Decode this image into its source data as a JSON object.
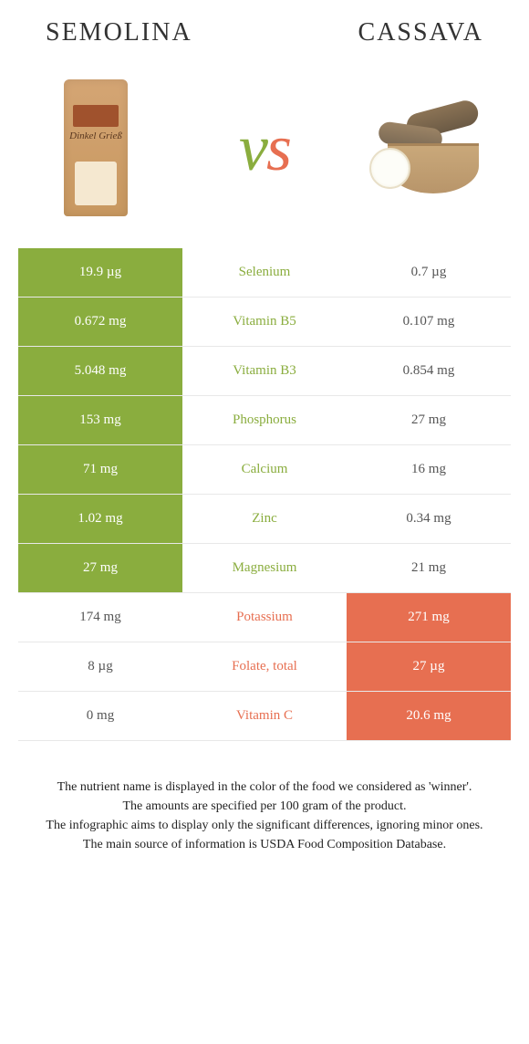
{
  "header": {
    "left_title": "semolina",
    "right_title": "cassava",
    "vs_v": "v",
    "vs_s": "s"
  },
  "colors": {
    "left_accent": "#8aad3e",
    "right_accent": "#e76f51",
    "row_border": "#e8e8e8",
    "background": "#ffffff"
  },
  "table": {
    "type": "comparison-table",
    "rows": [
      {
        "left": "19.9 µg",
        "label": "Selenium",
        "right": "0.7 µg",
        "winner": "left"
      },
      {
        "left": "0.672 mg",
        "label": "Vitamin B5",
        "right": "0.107 mg",
        "winner": "left"
      },
      {
        "left": "5.048 mg",
        "label": "Vitamin B3",
        "right": "0.854 mg",
        "winner": "left"
      },
      {
        "left": "153 mg",
        "label": "Phosphorus",
        "right": "27 mg",
        "winner": "left"
      },
      {
        "left": "71 mg",
        "label": "Calcium",
        "right": "16 mg",
        "winner": "left"
      },
      {
        "left": "1.02 mg",
        "label": "Zinc",
        "right": "0.34 mg",
        "winner": "left"
      },
      {
        "left": "27 mg",
        "label": "Magnesium",
        "right": "21 mg",
        "winner": "left"
      },
      {
        "left": "174 mg",
        "label": "Potassium",
        "right": "271 mg",
        "winner": "right"
      },
      {
        "left": "8 µg",
        "label": "Folate, total",
        "right": "27 µg",
        "winner": "right"
      },
      {
        "left": "0 mg",
        "label": "Vitamin C",
        "right": "20.6 mg",
        "winner": "right"
      }
    ]
  },
  "footer": {
    "line1": "The nutrient name is displayed in the color of the food we considered as 'winner'.",
    "line2": "The amounts are specified per 100 gram of the product.",
    "line3": "The infographic aims to display only the significant differences, ignoring minor ones.",
    "line4": "The main source of information is USDA Food Composition Database."
  },
  "typography": {
    "title_fontsize": 28,
    "cell_fontsize": 15,
    "vs_fontsize": 72,
    "footer_fontsize": 14
  }
}
